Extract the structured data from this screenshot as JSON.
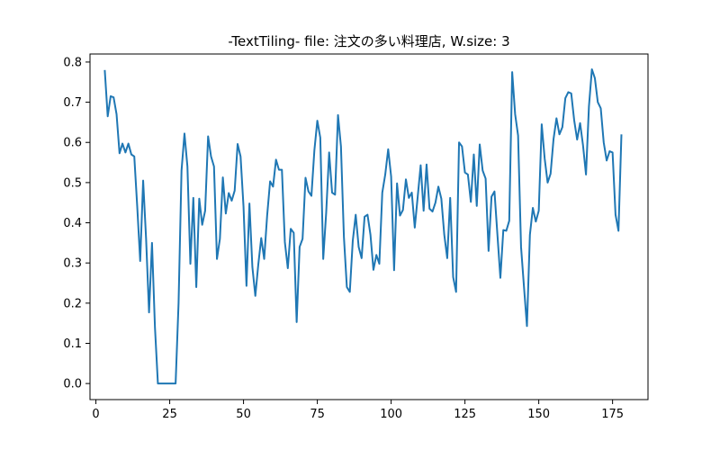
{
  "chart_data": {
    "type": "line",
    "title": "-TextTiling- file: 注文の多い料理店, W.size: 3",
    "xlabel": "",
    "ylabel": "",
    "xlim": [
      -2,
      187
    ],
    "ylim": [
      -0.04,
      0.82
    ],
    "xticks": [
      0,
      25,
      50,
      75,
      100,
      125,
      150,
      175
    ],
    "yticks": [
      0.0,
      0.1,
      0.2,
      0.3,
      0.4,
      0.5,
      0.6,
      0.7,
      0.8
    ],
    "ytick_labels": [
      "0.0",
      "0.1",
      "0.2",
      "0.3",
      "0.4",
      "0.5",
      "0.6",
      "0.7",
      "0.8"
    ],
    "grid": false,
    "line_color": "#1f77b4",
    "series": [
      {
        "x": [
          3,
          4,
          5,
          6,
          7,
          8,
          9,
          10,
          11,
          12,
          13,
          14,
          15,
          16,
          17,
          18,
          19,
          20,
          21,
          22,
          23,
          24,
          25,
          26,
          27,
          28,
          29,
          30,
          31,
          32,
          33,
          34,
          35,
          36,
          37,
          38,
          39,
          40,
          41,
          42,
          43,
          44,
          45,
          46,
          47,
          48,
          49,
          50,
          51,
          52,
          53,
          54,
          55,
          56,
          57,
          58,
          59,
          60,
          61,
          62,
          63,
          64,
          65,
          66,
          67,
          68,
          69,
          70,
          71,
          72,
          73,
          74,
          75,
          76,
          77,
          78,
          79,
          80,
          81,
          82,
          83,
          84,
          85,
          86,
          87,
          88,
          89,
          90,
          91,
          92,
          93,
          94,
          95,
          96,
          97,
          98,
          99,
          100,
          101,
          102,
          103,
          104,
          105,
          106,
          107,
          108,
          109,
          110,
          111,
          112,
          113,
          114,
          115,
          116,
          117,
          118,
          119,
          120,
          121,
          122,
          123,
          124,
          125,
          126,
          127,
          128,
          129,
          130,
          131,
          132,
          133,
          134,
          135,
          136,
          137,
          138,
          139,
          140,
          141,
          142,
          143,
          144,
          145,
          146,
          147,
          148,
          149,
          150,
          151,
          152,
          153,
          154,
          155,
          156,
          157,
          158,
          159,
          160,
          161,
          162,
          163,
          164,
          165,
          166,
          167,
          168,
          169,
          170,
          171,
          172,
          173,
          174,
          175,
          176,
          177,
          178
        ],
        "values": [
          0.78,
          0.665,
          0.715,
          0.712,
          0.67,
          0.573,
          0.597,
          0.575,
          0.597,
          0.57,
          0.565,
          0.44,
          0.305,
          0.505,
          0.36,
          0.177,
          0.35,
          0.14,
          0.0,
          0.0,
          0.0,
          0.0,
          0.0,
          0.0,
          0.0,
          0.2,
          0.53,
          0.622,
          0.54,
          0.298,
          0.462,
          0.24,
          0.46,
          0.395,
          0.43,
          0.615,
          0.565,
          0.54,
          0.31,
          0.36,
          0.513,
          0.423,
          0.474,
          0.455,
          0.48,
          0.596,
          0.565,
          0.44,
          0.243,
          0.448,
          0.29,
          0.218,
          0.296,
          0.362,
          0.31,
          0.418,
          0.503,
          0.49,
          0.557,
          0.532,
          0.532,
          0.352,
          0.287,
          0.385,
          0.375,
          0.153,
          0.34,
          0.36,
          0.512,
          0.478,
          0.467,
          0.58,
          0.654,
          0.612,
          0.31,
          0.425,
          0.575,
          0.475,
          0.47,
          0.668,
          0.59,
          0.365,
          0.24,
          0.228,
          0.355,
          0.42,
          0.34,
          0.312,
          0.415,
          0.42,
          0.37,
          0.283,
          0.32,
          0.298,
          0.475,
          0.52,
          0.583,
          0.515,
          0.282,
          0.498,
          0.418,
          0.432,
          0.508,
          0.462,
          0.475,
          0.388,
          0.465,
          0.543,
          0.43,
          0.545,
          0.435,
          0.428,
          0.45,
          0.49,
          0.46,
          0.37,
          0.312,
          0.462,
          0.265,
          0.228,
          0.6,
          0.59,
          0.525,
          0.52,
          0.452,
          0.57,
          0.442,
          0.595,
          0.53,
          0.51,
          0.33,
          0.465,
          0.478,
          0.37,
          0.263,
          0.382,
          0.38,
          0.405,
          0.775,
          0.67,
          0.617,
          0.34,
          0.24,
          0.143,
          0.37,
          0.437,
          0.403,
          0.43,
          0.645,
          0.56,
          0.5,
          0.522,
          0.608,
          0.66,
          0.62,
          0.638,
          0.71,
          0.725,
          0.722,
          0.655,
          0.607,
          0.648,
          0.592,
          0.52,
          0.69,
          0.782,
          0.76,
          0.7,
          0.685,
          0.6,
          0.555,
          0.578,
          0.575,
          0.42,
          0.38,
          0.62
        ]
      }
    ]
  }
}
